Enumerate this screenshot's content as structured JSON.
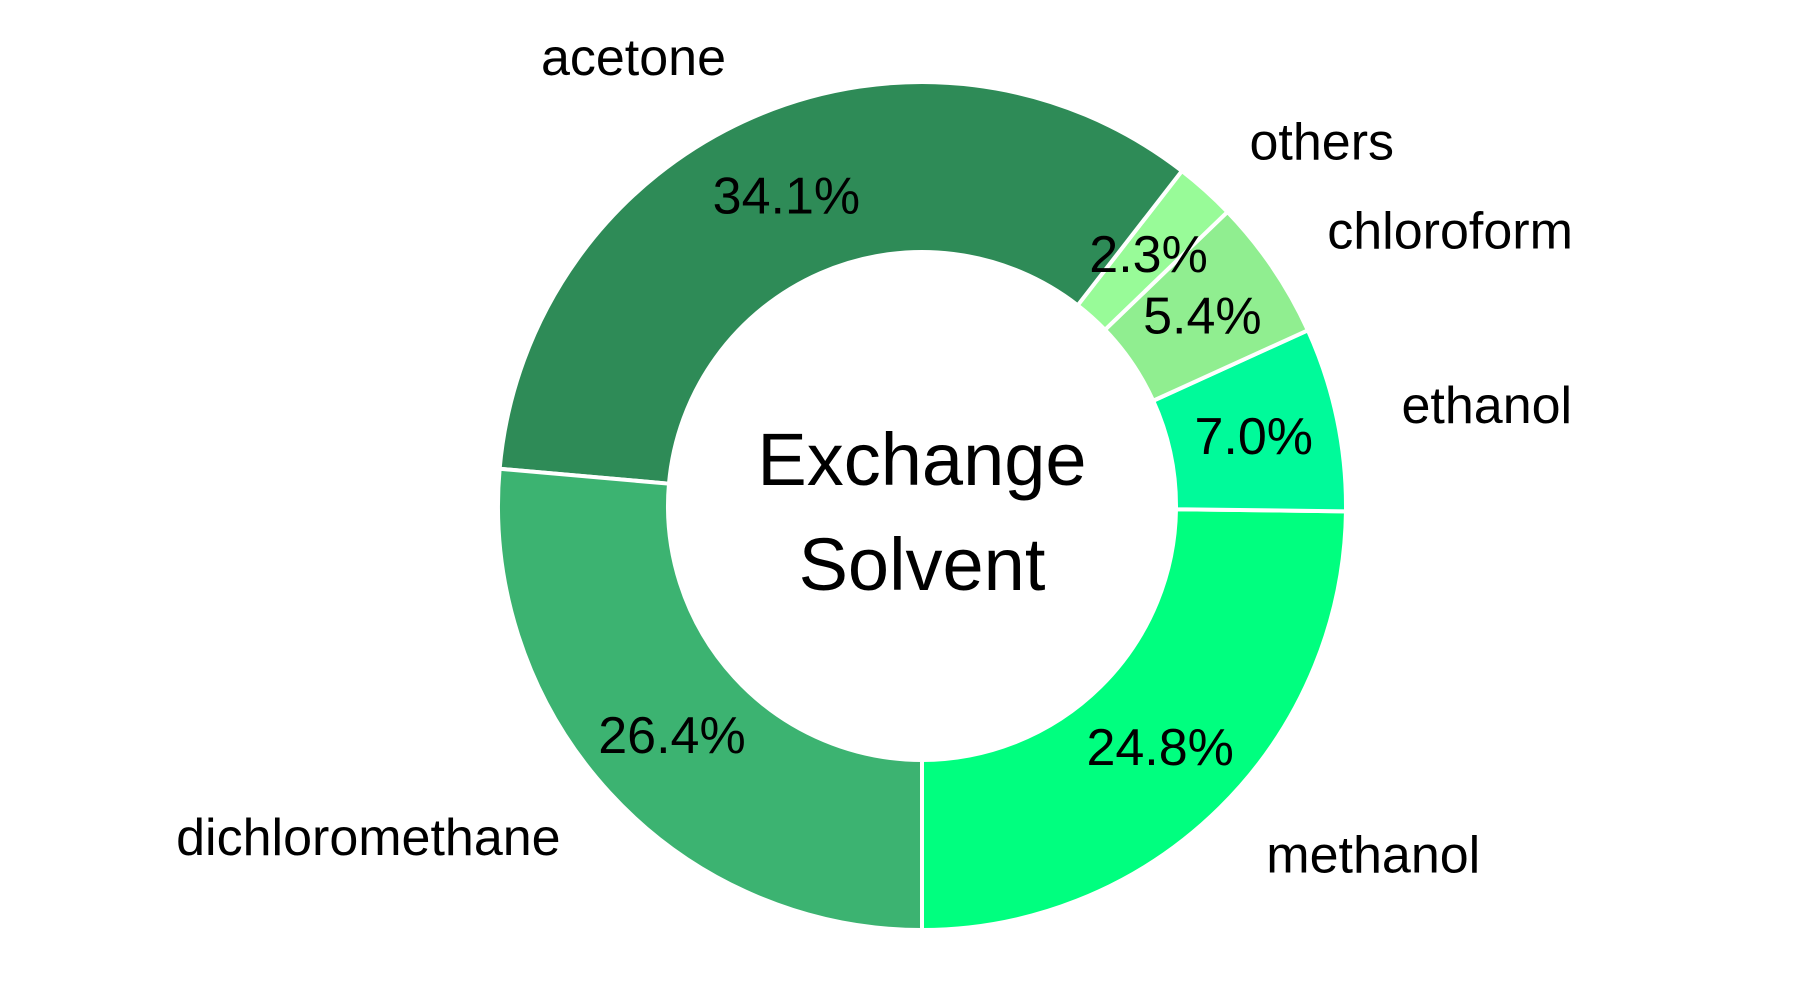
{
  "chart_data": {
    "type": "pie",
    "donut": true,
    "center_label": [
      "Exchange",
      "Solvent"
    ],
    "start_angle_deg": -90,
    "direction": "counterclockwise",
    "slices": [
      {
        "label": "methanol",
        "value": 24.8,
        "pct_text": "24.8%",
        "color": "#00FF7F"
      },
      {
        "label": "ethanol",
        "value": 7.0,
        "pct_text": "7.0%",
        "color": "#00FA9A"
      },
      {
        "label": "chloroform",
        "value": 5.4,
        "pct_text": "5.4%",
        "color": "#90EE90"
      },
      {
        "label": "others",
        "value": 2.3,
        "pct_text": "2.3%",
        "color": "#98FB98"
      },
      {
        "label": "acetone",
        "value": 34.1,
        "pct_text": "34.1%",
        "color": "#2E8B57"
      },
      {
        "label": "dichloromethane",
        "value": 26.4,
        "pct_text": "26.4%",
        "color": "#3CB371"
      }
    ]
  }
}
